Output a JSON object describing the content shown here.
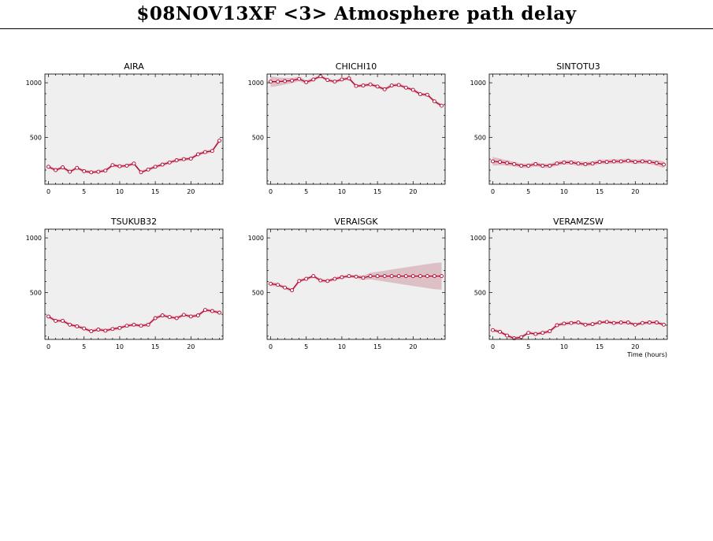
{
  "page": {
    "title": "$08NOV13XF <3>  Atmosphere path delay"
  },
  "chart_data": [
    {
      "type": "line",
      "title": "AIRA",
      "xlim": [
        -0.5,
        24.5
      ],
      "ylim": [
        70,
        1080
      ],
      "x": [
        0,
        1,
        2,
        3,
        4,
        5,
        6,
        7,
        8,
        9,
        10,
        11,
        12,
        13,
        14,
        15,
        16,
        17,
        18,
        19,
        20,
        21,
        22,
        23,
        24
      ],
      "values": [
        230,
        200,
        225,
        185,
        220,
        190,
        180,
        185,
        195,
        245,
        235,
        240,
        260,
        180,
        205,
        230,
        250,
        270,
        290,
        300,
        305,
        345,
        365,
        375,
        470
      ],
      "band": [
        15,
        15,
        15,
        15,
        15,
        15,
        15,
        15,
        15,
        15,
        15,
        15,
        15,
        15,
        15,
        15,
        15,
        15,
        15,
        15,
        15,
        15,
        15,
        15,
        20
      ],
      "xticks": [
        0,
        5,
        10,
        15,
        20
      ],
      "yticks": [
        500,
        1000
      ],
      "xlabel": ""
    },
    {
      "type": "line",
      "title": "CHICHI10",
      "xlim": [
        -0.5,
        24.5
      ],
      "ylim": [
        70,
        1080
      ],
      "x": [
        0,
        1,
        2,
        3,
        4,
        5,
        6,
        7,
        8,
        9,
        10,
        11,
        12,
        13,
        14,
        15,
        16,
        17,
        18,
        19,
        20,
        21,
        22,
        23,
        24
      ],
      "values": [
        1010,
        1010,
        1015,
        1020,
        1035,
        1005,
        1030,
        1060,
        1025,
        1010,
        1030,
        1040,
        970,
        975,
        985,
        965,
        940,
        975,
        980,
        955,
        935,
        895,
        890,
        830,
        790
      ],
      "band": [
        50,
        40,
        30,
        25,
        20,
        18,
        16,
        15,
        15,
        15,
        15,
        15,
        15,
        15,
        15,
        15,
        15,
        15,
        15,
        15,
        15,
        15,
        15,
        15,
        15
      ],
      "xticks": [
        0,
        5,
        10,
        15,
        20
      ],
      "yticks": [
        500,
        1000
      ],
      "xlabel": ""
    },
    {
      "type": "line",
      "title": "SINTOTU3",
      "xlim": [
        -0.5,
        24.5
      ],
      "ylim": [
        70,
        1080
      ],
      "x": [
        0,
        1,
        2,
        3,
        4,
        5,
        6,
        7,
        8,
        9,
        10,
        11,
        12,
        13,
        14,
        15,
        16,
        17,
        18,
        19,
        20,
        21,
        22,
        23,
        24
      ],
      "values": [
        280,
        275,
        265,
        255,
        240,
        240,
        255,
        240,
        240,
        260,
        270,
        270,
        260,
        255,
        260,
        275,
        275,
        280,
        280,
        285,
        275,
        280,
        275,
        265,
        250
      ],
      "band": [
        40,
        30,
        25,
        20,
        20,
        20,
        20,
        20,
        20,
        20,
        20,
        20,
        20,
        20,
        20,
        20,
        20,
        20,
        20,
        20,
        20,
        20,
        20,
        25,
        30
      ],
      "xticks": [
        0,
        5,
        10,
        15,
        20
      ],
      "yticks": [
        500,
        1000
      ],
      "xlabel": ""
    },
    {
      "type": "line",
      "title": "TSUKUB32",
      "xlim": [
        -0.5,
        24.5
      ],
      "ylim": [
        70,
        1080
      ],
      "x": [
        0,
        1,
        2,
        3,
        4,
        5,
        6,
        7,
        8,
        9,
        10,
        11,
        12,
        13,
        14,
        15,
        16,
        17,
        18,
        19,
        20,
        21,
        22,
        23,
        24
      ],
      "values": [
        280,
        240,
        240,
        205,
        190,
        170,
        145,
        160,
        150,
        165,
        175,
        195,
        205,
        195,
        205,
        265,
        290,
        275,
        265,
        295,
        280,
        290,
        340,
        330,
        315
      ],
      "band": [
        15,
        15,
        15,
        15,
        15,
        15,
        15,
        15,
        15,
        15,
        15,
        15,
        15,
        15,
        15,
        15,
        15,
        15,
        15,
        15,
        15,
        15,
        15,
        15,
        15
      ],
      "xticks": [
        0,
        5,
        10,
        15,
        20
      ],
      "yticks": [
        500,
        1000
      ],
      "xlabel": ""
    },
    {
      "type": "line",
      "title": "VERAISGK",
      "xlim": [
        -0.5,
        24.5
      ],
      "ylim": [
        70,
        1080
      ],
      "x": [
        0,
        1,
        2,
        3,
        4,
        5,
        6,
        7,
        8,
        9,
        10,
        11,
        12,
        13,
        14,
        15,
        16,
        17,
        18,
        19,
        20,
        21,
        22,
        23,
        24
      ],
      "values": [
        580,
        570,
        545,
        520,
        605,
        625,
        650,
        610,
        605,
        625,
        640,
        650,
        645,
        635,
        650,
        650,
        650,
        650,
        650,
        650,
        650,
        650,
        650,
        650,
        650
      ],
      "band": [
        20,
        15,
        15,
        15,
        15,
        15,
        15,
        15,
        15,
        15,
        15,
        15,
        15,
        20,
        30,
        40,
        50,
        60,
        70,
        80,
        90,
        100,
        110,
        120,
        125
      ],
      "xticks": [
        0,
        5,
        10,
        15,
        20
      ],
      "yticks": [
        500,
        1000
      ],
      "xlabel": ""
    },
    {
      "type": "line",
      "title": "VERAMZSW",
      "xlim": [
        -0.5,
        24.5
      ],
      "ylim": [
        70,
        1080
      ],
      "x": [
        0,
        1,
        2,
        3,
        4,
        5,
        6,
        7,
        8,
        9,
        10,
        11,
        12,
        13,
        14,
        15,
        16,
        17,
        18,
        19,
        20,
        21,
        22,
        23,
        24
      ],
      "values": [
        155,
        140,
        105,
        80,
        90,
        130,
        120,
        130,
        145,
        200,
        215,
        220,
        225,
        205,
        210,
        225,
        230,
        220,
        225,
        225,
        205,
        220,
        225,
        225,
        205
      ],
      "band": [
        15,
        15,
        15,
        15,
        15,
        15,
        15,
        15,
        15,
        15,
        15,
        15,
        15,
        15,
        15,
        15,
        15,
        15,
        15,
        15,
        15,
        15,
        15,
        15,
        15
      ],
      "xticks": [
        0,
        5,
        10,
        15,
        20
      ],
      "yticks": [
        500,
        1000
      ],
      "xlabel": "Time (hours)"
    }
  ],
  "colors": {
    "plot_bg": "#efefef",
    "line": "#b8002e",
    "band": "#dcc0c6",
    "marker_fill": "#ffffff"
  }
}
